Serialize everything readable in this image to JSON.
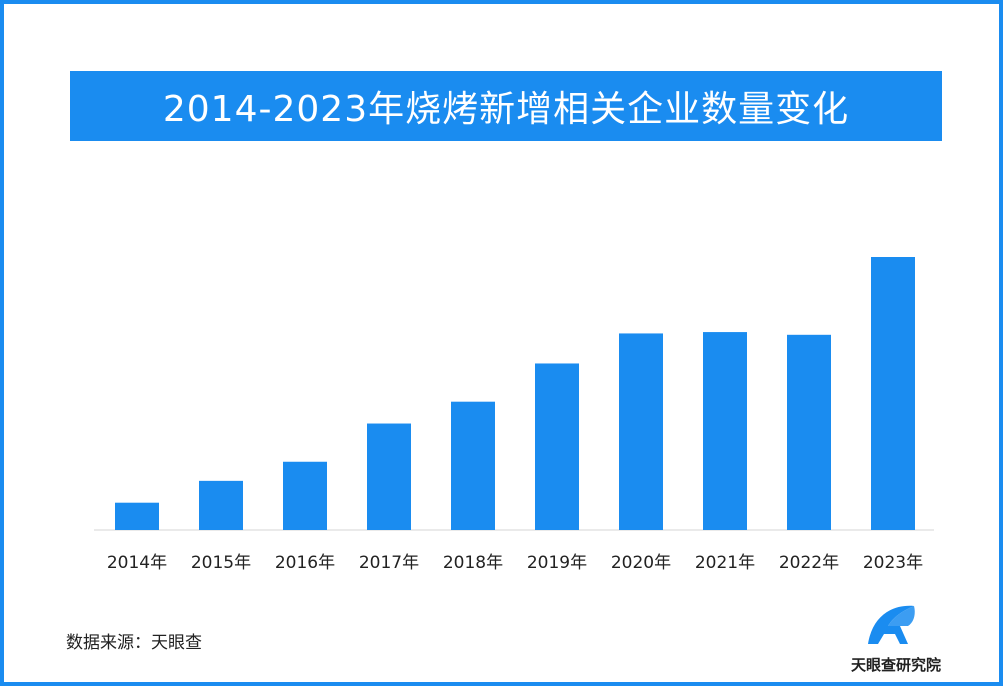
{
  "chart_data": {
    "type": "bar",
    "title": "2014-2023年烧烤新增相关企业数量变化",
    "categories": [
      "2014年",
      "2015年",
      "2016年",
      "2017年",
      "2018年",
      "2019年",
      "2020年",
      "2021年",
      "2022年",
      "2023年"
    ],
    "values": [
      10,
      18,
      25,
      39,
      47,
      61,
      72,
      72.5,
      71.5,
      100
    ],
    "ylim": [
      0,
      100
    ],
    "grid": false,
    "bar_color": "#1a8cf0"
  },
  "source_text": "数据来源：天眼查",
  "brand": {
    "name": "天眼查研究院",
    "logo_icon": "tianyancha-logo-icon",
    "logo_color": "#1a8cf0"
  },
  "colors": {
    "frame": "#1a8cf0",
    "title_bg": "#1a8cf0",
    "title_text": "#ffffff",
    "bar": "#1a8cf0"
  }
}
